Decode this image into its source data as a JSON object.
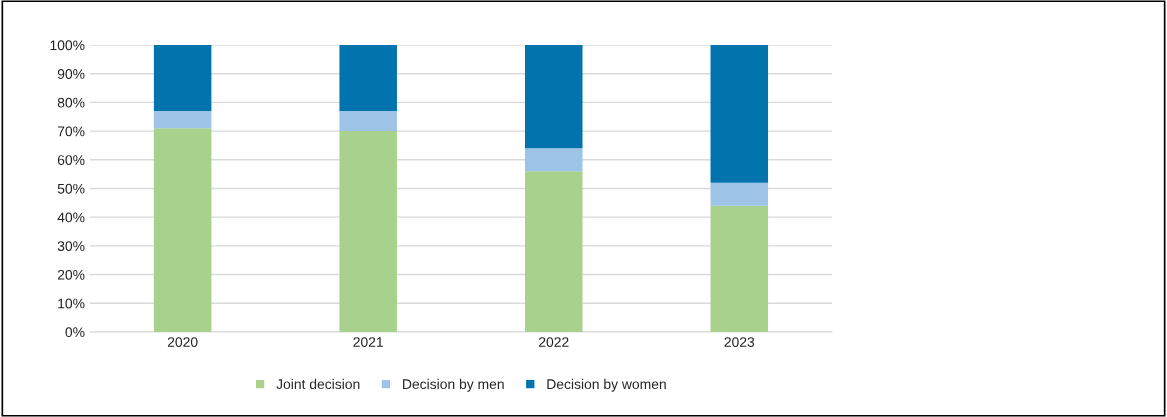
{
  "chart_data": {
    "type": "bar",
    "stacked": true,
    "categories": [
      "2020",
      "2021",
      "2022",
      "2023"
    ],
    "series": [
      {
        "name": "Joint decision",
        "color": "#a9d18e",
        "values": [
          71,
          70,
          56,
          44
        ]
      },
      {
        "name": "Decision by men",
        "color": "#9dc3e6",
        "values": [
          6,
          7,
          8,
          8
        ]
      },
      {
        "name": "Decision by women",
        "color": "#0173ad",
        "values": [
          23,
          23,
          36,
          48
        ]
      }
    ],
    "ylim": [
      0,
      100
    ],
    "yticks": [
      {
        "value": 0,
        "label": "0%"
      },
      {
        "value": 10,
        "label": "10%"
      },
      {
        "value": 20,
        "label": "20%"
      },
      {
        "value": 30,
        "label": "30%"
      },
      {
        "value": 40,
        "label": "40%"
      },
      {
        "value": 50,
        "label": "50%"
      },
      {
        "value": 60,
        "label": "60%"
      },
      {
        "value": 70,
        "label": "70%"
      },
      {
        "value": 80,
        "label": "80%"
      },
      {
        "value": 90,
        "label": "90%"
      },
      {
        "value": 100,
        "label": "100%"
      }
    ],
    "grid": "y",
    "legend": "bottom"
  }
}
